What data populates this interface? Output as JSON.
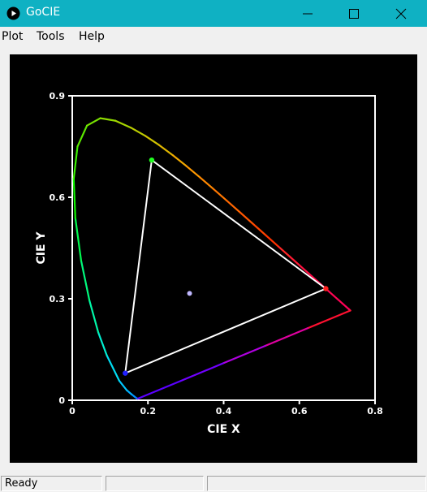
{
  "window": {
    "title": "GoCIE",
    "titlebar_color": "#0fb1c3"
  },
  "icons": {
    "app": "gocie-app-icon",
    "minimize": "minimize-icon",
    "maximize": "maximize-icon",
    "close": "close-icon"
  },
  "menu": {
    "items": [
      {
        "label": "Plot"
      },
      {
        "label": "Tools"
      },
      {
        "label": "Help"
      }
    ]
  },
  "status": {
    "text": "Ready",
    "pane2": "",
    "pane3": ""
  },
  "chart_data": {
    "type": "scatter",
    "title": "",
    "xlabel": "CIE X",
    "ylabel": "CIE Y",
    "xlim": [
      0,
      0.8
    ],
    "ylim": [
      0,
      0.9
    ],
    "xticks": [
      "0",
      "0.2",
      "0.4",
      "0.6",
      "0.8"
    ],
    "yticks": [
      "0",
      "0.3",
      "0.6",
      "0.9"
    ],
    "xtick_values": [
      0,
      0.2,
      0.4,
      0.6,
      0.8
    ],
    "ytick_values": [
      0,
      0.3,
      0.6,
      0.9
    ],
    "grid": false,
    "background": "#000000",
    "axis_color": "#ffffff",
    "spectral_locus": {
      "x": [
        0.1741,
        0.1738,
        0.1736,
        0.1733,
        0.1726,
        0.1714,
        0.1689,
        0.1644,
        0.1566,
        0.144,
        0.1241,
        0.0913,
        0.0687,
        0.0454,
        0.0235,
        0.0082,
        0.0039,
        0.0139,
        0.0389,
        0.0743,
        0.1142,
        0.1547,
        0.1929,
        0.2296,
        0.2658,
        0.3016,
        0.3373,
        0.3731,
        0.4087,
        0.4441,
        0.4788,
        0.5125,
        0.5448,
        0.5752,
        0.6029,
        0.627,
        0.6482,
        0.6658,
        0.6801,
        0.6915,
        0.7006,
        0.7079,
        0.714,
        0.719,
        0.723,
        0.726,
        0.7283,
        0.73,
        0.7311,
        0.732,
        0.7334,
        0.7347
      ],
      "y": [
        0.005,
        0.0049,
        0.0049,
        0.0048,
        0.0048,
        0.0051,
        0.0069,
        0.0109,
        0.0177,
        0.0297,
        0.0578,
        0.1327,
        0.2007,
        0.295,
        0.4127,
        0.5384,
        0.6548,
        0.7502,
        0.812,
        0.8338,
        0.8262,
        0.8059,
        0.7816,
        0.7543,
        0.7243,
        0.6923,
        0.6589,
        0.6245,
        0.5896,
        0.5547,
        0.5202,
        0.4866,
        0.4544,
        0.4242,
        0.3965,
        0.3725,
        0.3514,
        0.334,
        0.3197,
        0.3083,
        0.2993,
        0.292,
        0.2859,
        0.2809,
        0.277,
        0.274,
        0.2717,
        0.27,
        0.2689,
        0.268,
        0.2666,
        0.2653
      ],
      "colors": [
        "#5a00ff",
        "#4a00ff",
        "#3a00ff",
        "#1f1fff",
        "#0042ff",
        "#0060ff",
        "#007cff",
        "#0095ff",
        "#00aeff",
        "#00c6ff",
        "#00dcf2",
        "#00eecf",
        "#00f7a8",
        "#00fa7d",
        "#00f84f",
        "#10f300",
        "#3aee00",
        "#5ce800",
        "#78e200",
        "#90dc00",
        "#a6d500",
        "#bbcc00",
        "#cec200",
        "#e0b600",
        "#f0a800",
        "#ff9900",
        "#ff8800",
        "#ff7700",
        "#ff6600",
        "#ff5500",
        "#ff4400",
        "#ff3300",
        "#ff2626",
        "#ff1a33",
        "#ff1040",
        "#ff0a48",
        "#ff084c",
        "#ff0650",
        "#ff0552",
        "#ff0454",
        "#ff0355",
        "#ff0256",
        "#ff0157",
        "#ff0058",
        "#ff0059",
        "#ff005a",
        "#ff005a",
        "#ff005a",
        "#ff005a",
        "#ff005a",
        "#ff005a",
        "#ff005a"
      ],
      "purple_line_colors": [
        "#ff1030",
        "#e000a0",
        "#b000e0",
        "#7000ff",
        "#5a00ff"
      ]
    },
    "gamut_triangle": {
      "color": "#ffffff",
      "points": [
        {
          "name": "red",
          "x": 0.67,
          "y": 0.33,
          "color": "#ff2020"
        },
        {
          "name": "green",
          "x": 0.21,
          "y": 0.71,
          "color": "#20ff20"
        },
        {
          "name": "blue",
          "x": 0.14,
          "y": 0.08,
          "color": "#2020ff"
        }
      ]
    },
    "white_point": {
      "x": 0.31,
      "y": 0.316,
      "color": "#c0b8ff"
    }
  }
}
